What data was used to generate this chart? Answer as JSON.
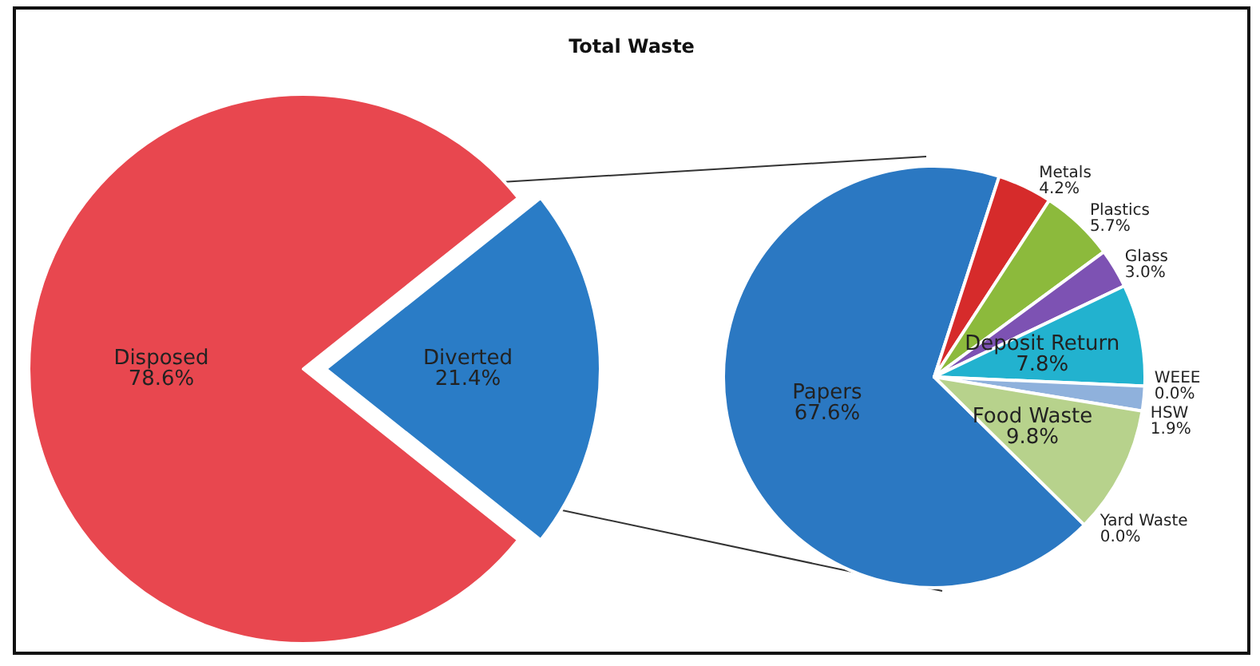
{
  "chart_data": [
    {
      "type": "pie",
      "title": "Total Waste",
      "categories": [
        "Diverted",
        "Disposed"
      ],
      "values": [
        21.4,
        78.6
      ],
      "colors": [
        "#2a7cc6",
        "#e8474f"
      ],
      "value_labels": [
        "21.4%",
        "78.6%"
      ],
      "legend": false
    },
    {
      "type": "pie",
      "categories": [
        "Papers",
        "Metals",
        "Plastics",
        "Glass",
        "Deposit Return",
        "WEEE",
        "HSW",
        "Food Waste",
        "Yard Waste"
      ],
      "values": [
        67.6,
        4.2,
        5.7,
        3.0,
        7.8,
        0.0,
        1.9,
        9.8,
        0.0
      ],
      "colors": [
        "#2b78c2",
        "#d62b2b",
        "#8cba3c",
        "#7d52b3",
        "#22b2cf",
        "#1f5fa8",
        "#8fb1dc",
        "#b7d28c",
        "#e07b2b"
      ],
      "value_labels": [
        "67.6%",
        "4.2%",
        "5.7%",
        "3.0%",
        "7.8%",
        "0.0%",
        "1.9%",
        "9.8%",
        "0.0%"
      ],
      "legend": false
    }
  ]
}
